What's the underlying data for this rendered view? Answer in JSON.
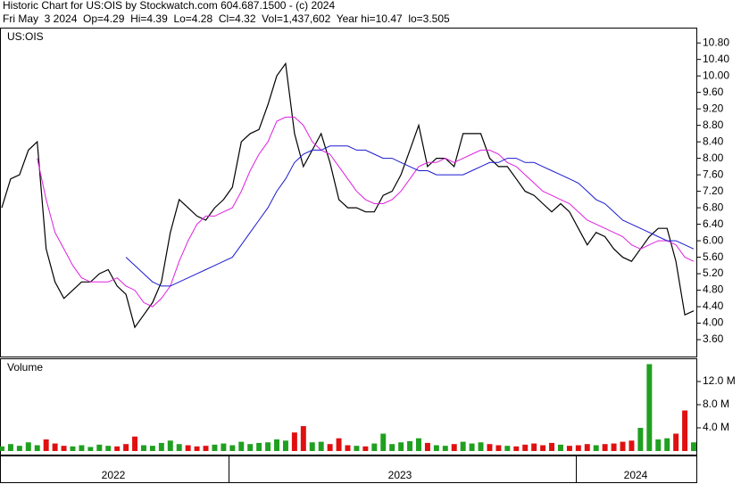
{
  "header": {
    "line1": "Historic Chart for US:OIS by Stockwatch.com 604.687.1500 - (c) 2024",
    "line2": "Fri May  3 2024  Op=4.29  Hi=4.39  Lo=4.28  Cl=4.32  Vol=1,437,602  Year hi=10.47  lo=3.505"
  },
  "chart_data": [
    {
      "type": "line",
      "label": "US:OIS",
      "ylim": [
        3.19,
        11.15
      ],
      "yticks": [
        {
          "value": 3.6,
          "label": "3.60"
        },
        {
          "value": 4,
          "label": "4.00"
        },
        {
          "value": 4.4,
          "label": "4.40"
        },
        {
          "value": 4.8,
          "label": "4.80"
        },
        {
          "value": 5.2,
          "label": "5.20"
        },
        {
          "value": 5.6,
          "label": "5.60"
        },
        {
          "value": 6,
          "label": "6.00"
        },
        {
          "value": 6.4,
          "label": "6.40"
        },
        {
          "value": 6.8,
          "label": "6.80"
        },
        {
          "value": 7.2,
          "label": "7.20"
        },
        {
          "value": 7.6,
          "label": "7.60"
        },
        {
          "value": 8,
          "label": "8.00"
        },
        {
          "value": 8.4,
          "label": "8.40"
        },
        {
          "value": 8.8,
          "label": "8.80"
        },
        {
          "value": 9.2,
          "label": "9.20"
        },
        {
          "value": 9.6,
          "label": "9.60"
        },
        {
          "value": 10,
          "label": "10.00"
        },
        {
          "value": 10.4,
          "label": "10.40"
        },
        {
          "value": 10.8,
          "label": "10.80"
        }
      ],
      "series": [
        {
          "color": "#000000",
          "values": [
            6.8,
            7.5,
            7.6,
            8.2,
            8.4,
            5.8,
            5.0,
            4.6,
            4.8,
            5.0,
            5.0,
            5.2,
            5.3,
            4.9,
            4.7,
            3.9,
            4.2,
            4.5,
            5.0,
            6.2,
            7.0,
            6.8,
            6.6,
            6.5,
            6.8,
            7.0,
            7.3,
            8.4,
            8.6,
            8.7,
            9.3,
            10.0,
            10.3,
            8.6,
            7.8,
            8.2,
            8.6,
            7.9,
            7.0,
            6.8,
            6.8,
            6.7,
            6.7,
            7.1,
            7.2,
            7.6,
            8.2,
            8.8,
            7.8,
            8.0,
            8.0,
            7.8,
            8.6,
            8.6,
            8.6,
            8.0,
            7.8,
            7.8,
            7.5,
            7.2,
            7.1,
            6.9,
            6.7,
            6.9,
            6.7,
            6.3,
            5.9,
            6.2,
            6.1,
            5.8,
            5.6,
            5.5,
            5.8,
            6.1,
            6.3,
            6.3,
            5.5,
            4.2,
            4.3
          ]
        },
        {
          "color": "#e020e0",
          "values": [
            null,
            null,
            null,
            null,
            8.0,
            7.0,
            6.2,
            5.8,
            5.4,
            5.1,
            5.0,
            5.0,
            5.0,
            5.1,
            4.9,
            4.8,
            4.5,
            4.4,
            4.6,
            4.9,
            5.5,
            6.0,
            6.4,
            6.6,
            6.6,
            6.7,
            6.8,
            7.2,
            7.7,
            8.1,
            8.4,
            8.9,
            9.0,
            9.0,
            8.8,
            8.4,
            8.2,
            8.1,
            7.8,
            7.5,
            7.2,
            7.0,
            6.9,
            6.9,
            7.0,
            7.2,
            7.5,
            7.8,
            7.9,
            7.9,
            8.0,
            7.9,
            8.0,
            8.1,
            8.2,
            8.2,
            8.1,
            7.9,
            7.8,
            7.6,
            7.4,
            7.2,
            7.1,
            7.0,
            6.9,
            6.7,
            6.5,
            6.4,
            6.3,
            6.2,
            6.1,
            5.9,
            5.8,
            5.9,
            6.0,
            6.0,
            5.9,
            5.6,
            5.5
          ]
        },
        {
          "color": "#1a1ad0",
          "values": [
            null,
            null,
            null,
            null,
            null,
            null,
            null,
            null,
            null,
            null,
            null,
            null,
            null,
            null,
            5.6,
            5.4,
            5.2,
            5.0,
            4.9,
            4.9,
            5.0,
            5.1,
            5.2,
            5.3,
            5.4,
            5.5,
            5.6,
            5.9,
            6.2,
            6.5,
            6.8,
            7.2,
            7.5,
            7.9,
            8.1,
            8.2,
            8.2,
            8.3,
            8.3,
            8.3,
            8.2,
            8.2,
            8.1,
            8.0,
            8.0,
            7.9,
            7.8,
            7.7,
            7.7,
            7.6,
            7.6,
            7.6,
            7.6,
            7.7,
            7.8,
            7.9,
            7.9,
            8.0,
            8.0,
            7.9,
            7.9,
            7.8,
            7.7,
            7.6,
            7.5,
            7.4,
            7.2,
            7.0,
            6.9,
            6.7,
            6.5,
            6.4,
            6.3,
            6.2,
            6.1,
            6.0,
            6.0,
            5.9,
            5.8
          ]
        }
      ]
    },
    {
      "type": "bar",
      "label": "Volume",
      "ylim": [
        0,
        15.85
      ],
      "yticks": [
        {
          "value": 4,
          "label": "4.0 M"
        },
        {
          "value": 8,
          "label": "8.0 M"
        },
        {
          "value": 12,
          "label": "12.0 M"
        }
      ],
      "up_color": "#20a020",
      "down_color": "#e01010",
      "values": [
        0.8,
        1.2,
        0.9,
        1.5,
        1.0,
        2.0,
        1.3,
        0.9,
        0.8,
        1.0,
        0.7,
        1.1,
        0.9,
        0.8,
        1.2,
        2.5,
        1.0,
        0.9,
        1.4,
        1.8,
        1.2,
        1.0,
        0.8,
        0.9,
        1.1,
        1.3,
        1.0,
        1.6,
        1.2,
        1.4,
        1.5,
        2.0,
        1.8,
        3.2,
        4.3,
        1.5,
        1.6,
        1.2,
        2.2,
        1.0,
        0.9,
        0.8,
        1.3,
        3.0,
        1.2,
        1.5,
        1.7,
        2.2,
        1.4,
        1.0,
        0.9,
        1.2,
        1.6,
        1.3,
        1.5,
        1.2,
        1.0,
        0.9,
        0.8,
        1.1,
        1.3,
        1.0,
        1.4,
        1.1,
        0.9,
        1.0,
        1.2,
        1.0,
        1.2,
        1.3,
        1.6,
        1.8,
        4.0,
        15.0,
        2.0,
        2.2,
        3.0,
        7.0,
        1.5
      ]
    }
  ],
  "date_axis": {
    "labels": [
      "2022",
      "2023",
      "2024"
    ]
  }
}
